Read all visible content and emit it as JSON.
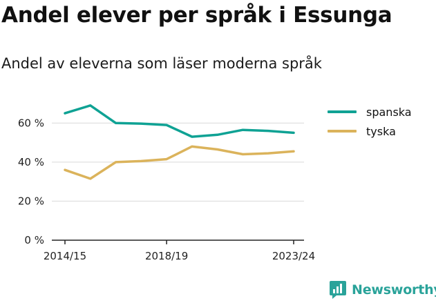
{
  "title": "Andel elever per språk i Essunga",
  "subtitle": "Andel av eleverna som läser moderna språk",
  "brand": "Newsworthy",
  "chart_data": {
    "type": "line",
    "title": "Andel elever per språk i Essunga",
    "subtitle": "Andel av eleverna som läser moderna språk",
    "x": [
      "2014/15",
      "2015/16",
      "2016/17",
      "2017/18",
      "2018/19",
      "2019/20",
      "2020/21",
      "2021/22",
      "2022/23",
      "2023/24"
    ],
    "x_tick_labels": [
      "2014/15",
      "2018/19",
      "2023/24"
    ],
    "y_ticks": [
      0,
      20,
      40,
      60
    ],
    "y_tick_labels": [
      "0 %",
      "20 %",
      "40 %",
      "60 %"
    ],
    "ylim": [
      0,
      70
    ],
    "grid": true,
    "legend_position": "top-right",
    "series": [
      {
        "name": "spanska",
        "color": "#0fa294",
        "values": [
          65,
          69,
          60,
          59.7,
          59,
          53,
          54,
          56.5,
          56,
          55
        ]
      },
      {
        "name": "tyska",
        "color": "#dbb35b",
        "values": [
          36,
          31.5,
          40,
          40.5,
          41.5,
          48,
          46.5,
          44,
          44.5,
          45.5
        ]
      }
    ]
  }
}
